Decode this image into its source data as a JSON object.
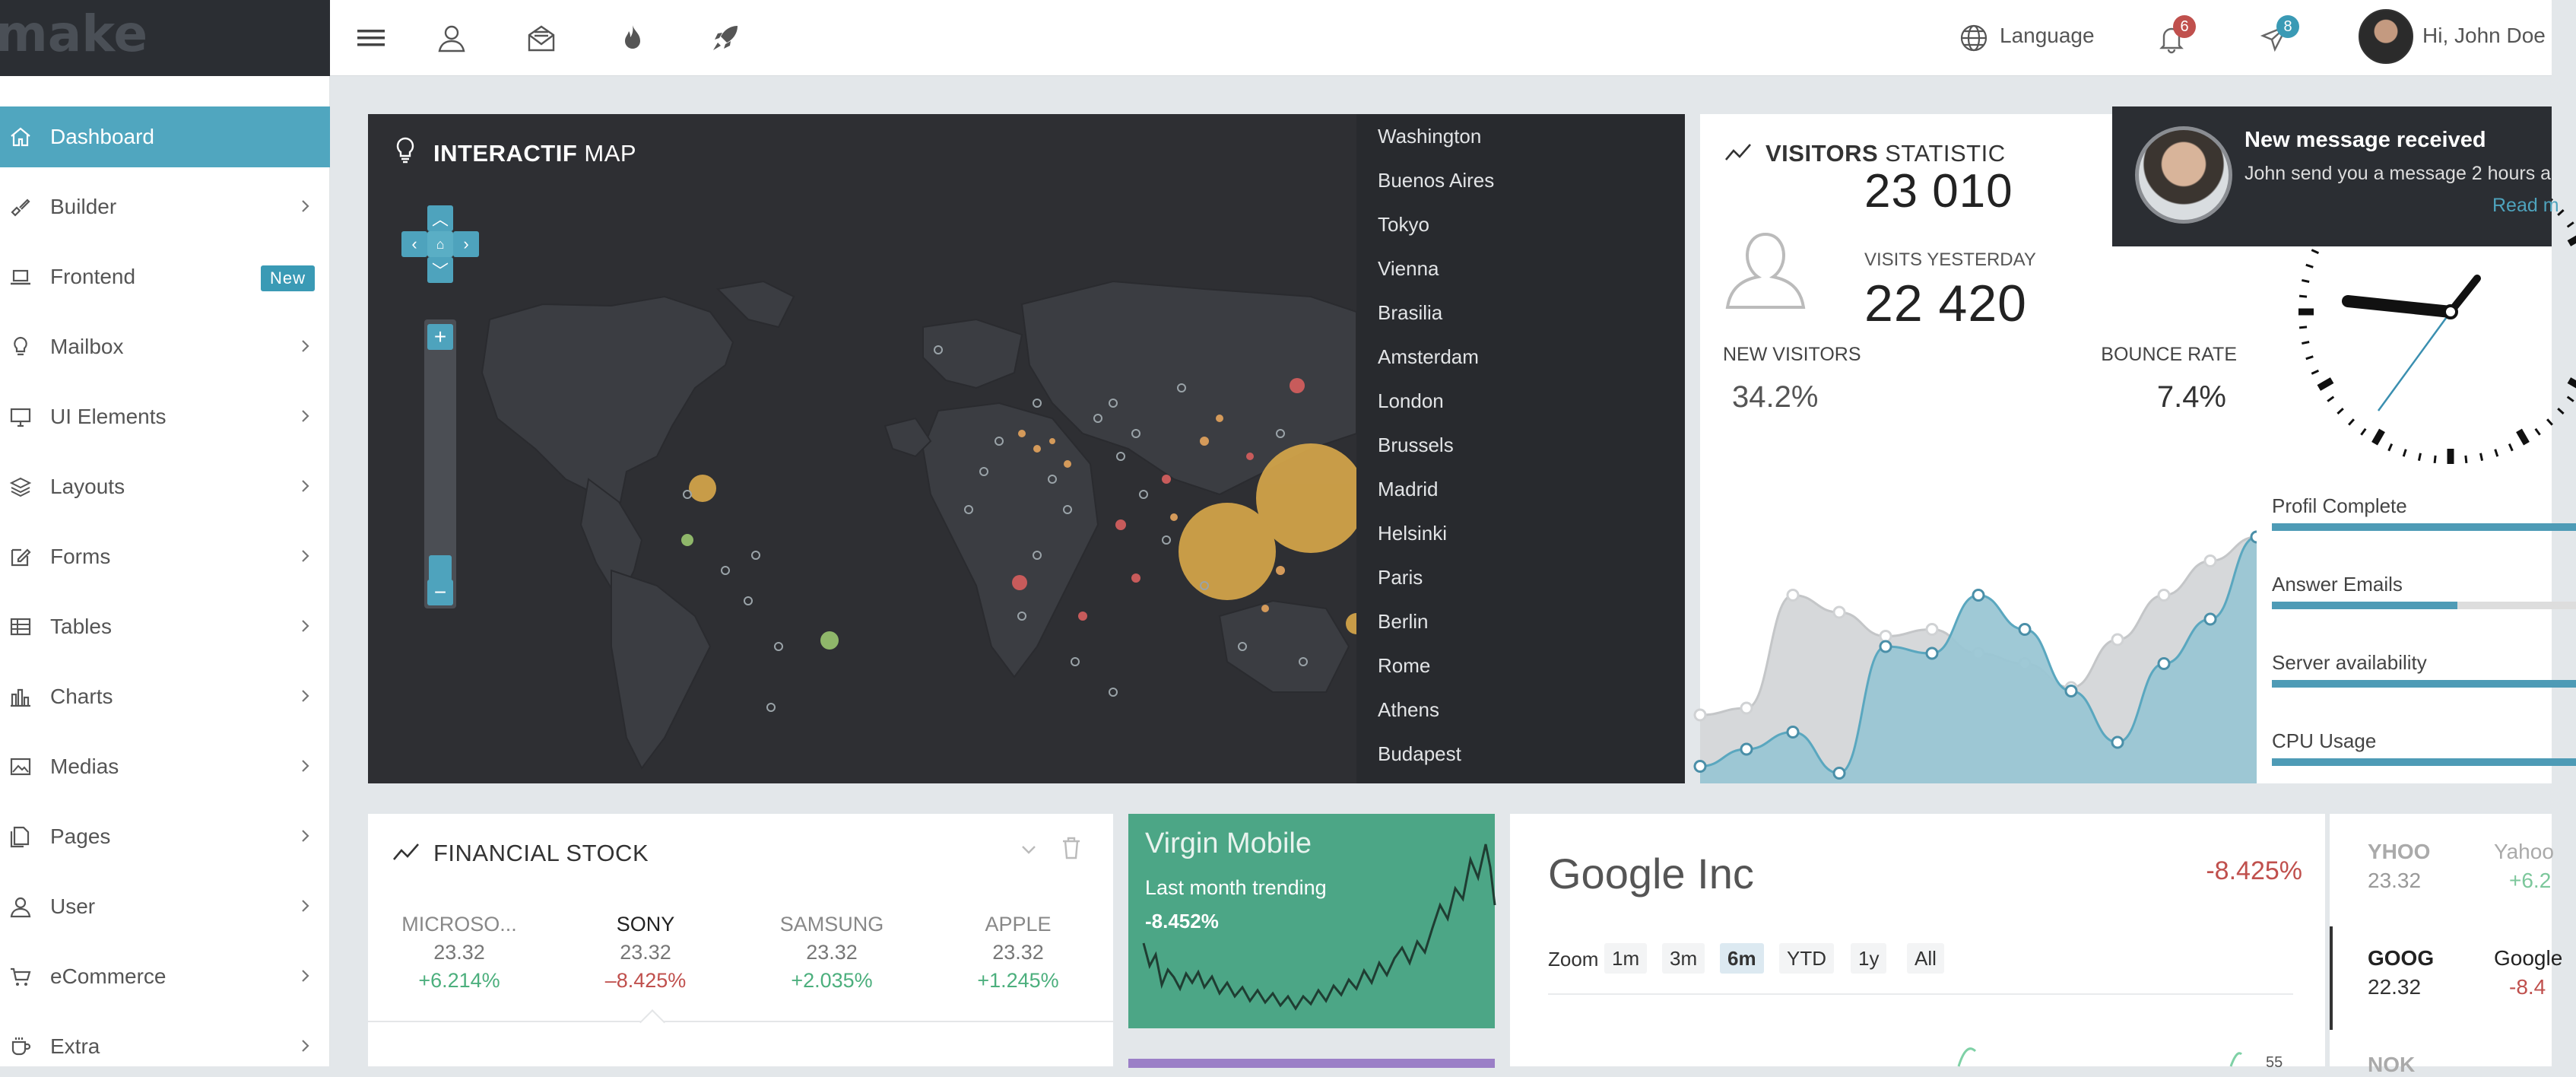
{
  "brand": {
    "name": "make"
  },
  "topbar": {
    "language": "Language",
    "notifications_count": "6",
    "messages_count": "8",
    "greeting": "Hi, John Doe"
  },
  "sidebar": {
    "items": [
      {
        "label": "Dashboard",
        "icon": "home-icon",
        "active": true
      },
      {
        "label": "Builder",
        "icon": "paint-brush-icon"
      },
      {
        "label": "Frontend",
        "icon": "laptop-icon",
        "badge": "New"
      },
      {
        "label": "Mailbox",
        "icon": "lightbulb-icon"
      },
      {
        "label": "UI Elements",
        "icon": "monitor-icon"
      },
      {
        "label": "Layouts",
        "icon": "layers-icon"
      },
      {
        "label": "Forms",
        "icon": "edit-icon"
      },
      {
        "label": "Tables",
        "icon": "table-icon"
      },
      {
        "label": "Charts",
        "icon": "bar-chart-icon"
      },
      {
        "label": "Medias",
        "icon": "image-icon"
      },
      {
        "label": "Pages",
        "icon": "pages-icon"
      },
      {
        "label": "User",
        "icon": "user-icon"
      },
      {
        "label": "eCommerce",
        "icon": "cart-icon"
      },
      {
        "label": "Extra",
        "icon": "cup-icon"
      }
    ]
  },
  "map": {
    "title_bold": "INTERACTIF",
    "title_rest": " MAP",
    "cities": [
      "Washington",
      "Buenos Aires",
      "Tokyo",
      "Vienna",
      "Brasilia",
      "Amsterdam",
      "London",
      "Brussels",
      "Madrid",
      "Helsinki",
      "Paris",
      "Berlin",
      "Rome",
      "Athens",
      "Budapest"
    ]
  },
  "visitors": {
    "title_bold": "VISITORS",
    "title_rest": " STATISTIC",
    "top_value": "23 010",
    "visits_yesterday_label": "VISITS YESTERDAY",
    "visits_yesterday_value": "22 420",
    "new_visitors_label": "NEW VISITORS",
    "new_visitors_value": "34.2%",
    "bounce_rate_label": "BOUNCE RATE",
    "bounce_rate_value": "7.4%",
    "chart_data": {
      "type": "area",
      "series": [
        {
          "values": [
            20,
            22,
            55,
            50,
            43,
            45,
            38,
            35,
            28,
            42,
            55,
            65,
            72
          ]
        },
        {
          "values": [
            5,
            10,
            15,
            3,
            40,
            38,
            55,
            45,
            27,
            12,
            35,
            48,
            72
          ]
        }
      ]
    }
  },
  "progress": [
    {
      "label": "Profil Complete",
      "value": 100
    },
    {
      "label": "Answer Emails",
      "value": 61
    },
    {
      "label": "Server availability",
      "value": 100
    },
    {
      "label": "CPU Usage",
      "value": 100
    }
  ],
  "notification": {
    "title": "New message received",
    "body": "John send you a message 2 hours a",
    "link": "Read m"
  },
  "financial": {
    "title_bold": "FINANCIAL",
    "title_rest": " STOCK",
    "stocks": [
      {
        "name": "MICROSO...",
        "price": "23.32",
        "change": "+6.214%",
        "color": "#4caf7d"
      },
      {
        "name": "SONY",
        "price": "23.32",
        "change": "–8.425%",
        "color": "#c0504d"
      },
      {
        "name": "SAMSUNG",
        "price": "23.32",
        "change": "+2.035%",
        "color": "#4caf7d"
      },
      {
        "name": "APPLE",
        "price": "23.32",
        "change": "+1.245%",
        "color": "#4caf7d"
      }
    ]
  },
  "virgin": {
    "title": "Virgin Mobile",
    "subtitle": "Last month trending",
    "change": "-8.452%"
  },
  "google": {
    "title": "Google Inc",
    "change": "-8.425%",
    "zoom_label": "Zoom",
    "zoom_options": [
      "1m",
      "3m",
      "6m",
      "YTD",
      "1y",
      "All"
    ],
    "selected_zoom": "6m",
    "axis_value": "55"
  },
  "tickers": [
    {
      "symbol": "YHOO",
      "price": "23.32",
      "name": "Yahoo",
      "change": "+6.2",
      "change_color": "#7cc79b"
    },
    {
      "symbol": "GOOG",
      "price": "22.32",
      "name": "Google",
      "change": "-8.4",
      "change_color": "#c0504d"
    },
    {
      "symbol": "NOK",
      "price": "",
      "name": "",
      "change": "",
      "change_color": "#999"
    }
  ]
}
